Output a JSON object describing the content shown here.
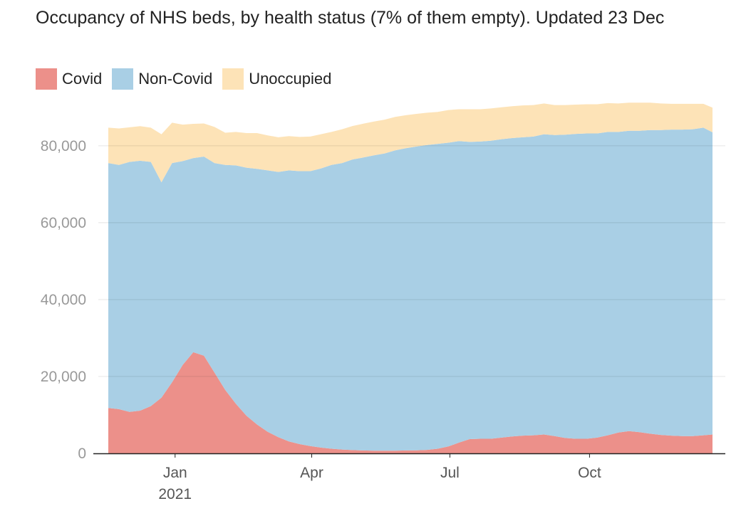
{
  "chart_data": {
    "type": "area",
    "stacked": true,
    "title": "Occupancy of NHS beds, by health status (7% of them empty). Updated 23 Dec",
    "xlabel": "",
    "ylabel": "",
    "ylim": [
      0,
      92000
    ],
    "xlim": [
      "2020-11-18",
      "2021-12-21"
    ],
    "grid": true,
    "legend_placement": "top-left",
    "y_ticks": [
      {
        "value": 0,
        "label": "0"
      },
      {
        "value": 20000,
        "label": "20,000"
      },
      {
        "value": 40000,
        "label": "40,000"
      },
      {
        "value": 60000,
        "label": "60,000"
      },
      {
        "value": 80000,
        "label": "80,000"
      }
    ],
    "x_ticks": [
      {
        "date": "2021-01-01",
        "label": "Jan",
        "sublabel": "2021"
      },
      {
        "date": "2021-04-01",
        "label": "Apr",
        "sublabel": ""
      },
      {
        "date": "2021-07-01",
        "label": "Jul",
        "sublabel": ""
      },
      {
        "date": "2021-10-01",
        "label": "Oct",
        "sublabel": ""
      }
    ],
    "dates": [
      "2020-11-18",
      "2020-11-25",
      "2020-12-02",
      "2020-12-09",
      "2020-12-16",
      "2020-12-23",
      "2020-12-30",
      "2021-01-06",
      "2021-01-13",
      "2021-01-20",
      "2021-01-27",
      "2021-02-03",
      "2021-02-10",
      "2021-02-17",
      "2021-02-24",
      "2021-03-03",
      "2021-03-10",
      "2021-03-17",
      "2021-03-24",
      "2021-03-31",
      "2021-04-07",
      "2021-04-14",
      "2021-04-21",
      "2021-04-28",
      "2021-05-05",
      "2021-05-12",
      "2021-05-19",
      "2021-05-26",
      "2021-06-02",
      "2021-06-09",
      "2021-06-16",
      "2021-06-23",
      "2021-06-30",
      "2021-07-07",
      "2021-07-14",
      "2021-07-21",
      "2021-07-28",
      "2021-08-04",
      "2021-08-11",
      "2021-08-18",
      "2021-08-25",
      "2021-09-01",
      "2021-09-08",
      "2021-09-15",
      "2021-09-22",
      "2021-09-29",
      "2021-10-06",
      "2021-10-13",
      "2021-10-20",
      "2021-10-27",
      "2021-11-03",
      "2021-11-10",
      "2021-11-17",
      "2021-11-24",
      "2021-12-01",
      "2021-12-08",
      "2021-12-15",
      "2021-12-21"
    ],
    "series": [
      {
        "name": "Covid",
        "color": "#ec908a",
        "values": [
          11800,
          11500,
          10800,
          11100,
          12300,
          14500,
          18500,
          23000,
          26300,
          25400,
          21000,
          16500,
          12900,
          9800,
          7500,
          5600,
          4200,
          3100,
          2400,
          1900,
          1500,
          1200,
          1000,
          850,
          750,
          700,
          700,
          700,
          750,
          800,
          900,
          1200,
          1800,
          2800,
          3700,
          3800,
          3800,
          4100,
          4400,
          4600,
          4700,
          4900,
          4500,
          4000,
          3800,
          3800,
          4100,
          4700,
          5400,
          5800,
          5500,
          5100,
          4800,
          4600,
          4500,
          4500,
          4700,
          4900
        ]
      },
      {
        "name": "Non-Covid",
        "color": "#a9cfe5",
        "values": [
          63700,
          63500,
          65000,
          65000,
          63500,
          56000,
          57000,
          53000,
          50500,
          51800,
          54500,
          58500,
          62000,
          64500,
          66500,
          68000,
          69000,
          70500,
          71000,
          71500,
          72600,
          73800,
          74500,
          75600,
          76200,
          76800,
          77300,
          78100,
          78600,
          79000,
          79300,
          79300,
          79000,
          78400,
          77300,
          77300,
          77500,
          77600,
          77600,
          77600,
          77700,
          78100,
          78300,
          78900,
          79300,
          79400,
          79100,
          78900,
          78200,
          78100,
          78400,
          79000,
          79300,
          79600,
          79700,
          79800,
          80000,
          78600
        ]
      },
      {
        "name": "Unoccupied",
        "color": "#fde3b7",
        "values": [
          9200,
          9500,
          9000,
          9000,
          8900,
          12500,
          10500,
          9500,
          8900,
          8600,
          9400,
          8400,
          8700,
          9000,
          9300,
          9100,
          9000,
          8900,
          8900,
          9000,
          8900,
          8600,
          8800,
          8700,
          8800,
          8800,
          8800,
          8700,
          8600,
          8500,
          8400,
          8300,
          8500,
          8300,
          8500,
          8400,
          8400,
          8300,
          8300,
          8300,
          8200,
          8000,
          7800,
          7700,
          7600,
          7600,
          7600,
          7500,
          7400,
          7300,
          7300,
          7100,
          6900,
          6700,
          6700,
          6600,
          6200,
          6400
        ]
      }
    ]
  }
}
